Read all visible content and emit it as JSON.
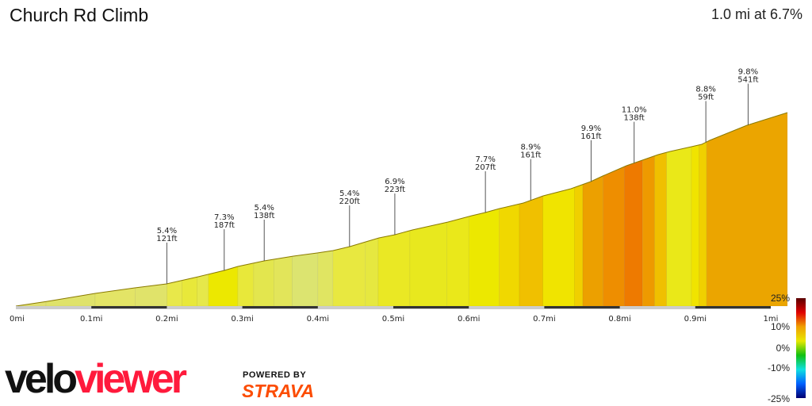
{
  "header": {
    "title": "Church Rd Climb",
    "summary": "1.0 mi at 6.7%"
  },
  "chart_data": {
    "type": "area",
    "xlabel": "",
    "ylabel": "",
    "xlim": [
      0,
      1
    ],
    "x_ticks": [
      "0mi",
      "0.1mi",
      "0.2mi",
      "0.3mi",
      "0.4mi",
      "0.5mi",
      "0.6mi",
      "0.7mi",
      "0.8mi",
      "0.9mi",
      "1mi"
    ],
    "segments": [
      {
        "end_mi": 0.04,
        "color": "#e0e070"
      },
      {
        "end_mi": 0.105,
        "color": "#dfe26a"
      },
      {
        "end_mi": 0.158,
        "color": "#e3e466"
      },
      {
        "end_mi": 0.2,
        "color": "#e0e36a"
      },
      {
        "end_mi": 0.22,
        "color": "#e8e84a"
      },
      {
        "end_mi": 0.24,
        "color": "#e8e83a"
      },
      {
        "end_mi": 0.255,
        "color": "#e6e84a"
      },
      {
        "end_mi": 0.294,
        "color": "#ece800"
      },
      {
        "end_mi": 0.315,
        "color": "#e8e83a"
      },
      {
        "end_mi": 0.342,
        "color": "#e3e64e"
      },
      {
        "end_mi": 0.366,
        "color": "#e2e55a"
      },
      {
        "end_mi": 0.4,
        "color": "#dce470"
      },
      {
        "end_mi": 0.42,
        "color": "#e0e562"
      },
      {
        "end_mi": 0.463,
        "color": "#e8e840"
      },
      {
        "end_mi": 0.48,
        "color": "#e6e840"
      },
      {
        "end_mi": 0.522,
        "color": "#eae824"
      },
      {
        "end_mi": 0.571,
        "color": "#e8e81e"
      },
      {
        "end_mi": 0.6,
        "color": "#eae81a"
      },
      {
        "end_mi": 0.64,
        "color": "#ece800"
      },
      {
        "end_mi": 0.667,
        "color": "#f0d800"
      },
      {
        "end_mi": 0.698,
        "color": "#f0c000"
      },
      {
        "end_mi": 0.74,
        "color": "#f0e400"
      },
      {
        "end_mi": 0.751,
        "color": "#f0d000"
      },
      {
        "end_mi": 0.778,
        "color": "#eca000"
      },
      {
        "end_mi": 0.806,
        "color": "#ee8e00"
      },
      {
        "end_mi": 0.83,
        "color": "#ee7a00"
      },
      {
        "end_mi": 0.846,
        "color": "#ee9a00"
      },
      {
        "end_mi": 0.862,
        "color": "#f0c000"
      },
      {
        "end_mi": 0.895,
        "color": "#eae818"
      },
      {
        "end_mi": 0.905,
        "color": "#f0e400"
      },
      {
        "end_mi": 0.915,
        "color": "#f0d000"
      },
      {
        "end_mi": 1.0,
        "color": "#eba500"
      }
    ],
    "annotations": [
      {
        "x_mi": 0.2,
        "grade": "5.4%",
        "length": "121ft"
      },
      {
        "x_mi": 0.276,
        "grade": "7.3%",
        "length": "187ft"
      },
      {
        "x_mi": 0.329,
        "grade": "5.4%",
        "length": "138ft"
      },
      {
        "x_mi": 0.442,
        "grade": "5.4%",
        "length": "220ft"
      },
      {
        "x_mi": 0.502,
        "grade": "6.9%",
        "length": "223ft"
      },
      {
        "x_mi": 0.622,
        "grade": "7.7%",
        "length": "207ft"
      },
      {
        "x_mi": 0.682,
        "grade": "8.9%",
        "length": "161ft"
      },
      {
        "x_mi": 0.762,
        "grade": "9.9%",
        "length": "161ft"
      },
      {
        "x_mi": 0.819,
        "grade": "11.0%",
        "length": "138ft"
      },
      {
        "x_mi": 0.914,
        "grade": "8.8%",
        "length": "59ft"
      },
      {
        "x_mi": 0.97,
        "grade": "9.8%",
        "length": "541ft"
      }
    ],
    "legend": {
      "labels": [
        "25%",
        "10%",
        "0%",
        "-10%",
        "-25%"
      ],
      "colors": [
        "#5a0000",
        "#e00000",
        "#f0a000",
        "#e8e800",
        "#10c010",
        "#10e0e0",
        "#0060ff",
        "#000070"
      ]
    }
  },
  "branding": {
    "logo_a": "velo",
    "logo_b": "viewer",
    "powered": "POWERED BY",
    "strava": "STRAVA"
  }
}
